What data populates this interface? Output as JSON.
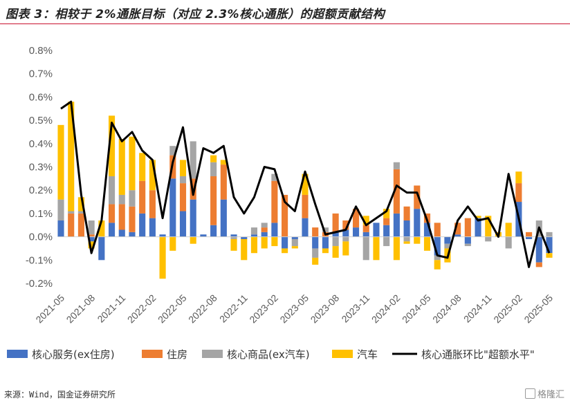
{
  "title": "图表 3：相较于 2%通胀目标（对应 2.3%核心通胀）的超额贡献结构",
  "source": "来源：Wind，国金证券研究所",
  "watermark": "格隆汇",
  "chart_data": {
    "type": "bar",
    "stacked": true,
    "title": "",
    "xlabel": "",
    "ylabel": "",
    "ylim": [
      -0.2,
      0.8
    ],
    "y_ticks": [
      "-0.2%",
      "-0.1%",
      "0.0%",
      "0.1%",
      "0.2%",
      "0.3%",
      "0.4%",
      "0.5%",
      "0.6%",
      "0.7%",
      "0.8%"
    ],
    "x_tick_labels": [
      "2021-05",
      "2021-08",
      "2021-11",
      "2022-02",
      "2022-05",
      "2022-08",
      "2022-11",
      "2023-02",
      "2023-05",
      "2023-08",
      "2023-11",
      "2024-02",
      "2024-05",
      "2024-08",
      "2024-11",
      "2025-02",
      "2025-05"
    ],
    "legend_position": "bottom",
    "grid": false,
    "categories": [
      "2021-05",
      "2021-06",
      "2021-07",
      "2021-08",
      "2021-09",
      "2021-10",
      "2021-11",
      "2021-12",
      "2022-01",
      "2022-02",
      "2022-03",
      "2022-04",
      "2022-05",
      "2022-06",
      "2022-07",
      "2022-08",
      "2022-09",
      "2022-10",
      "2022-11",
      "2022-12",
      "2023-01",
      "2023-02",
      "2023-03",
      "2023-04",
      "2023-05",
      "2023-06",
      "2023-07",
      "2023-08",
      "2023-09",
      "2023-10",
      "2023-11",
      "2023-12",
      "2024-01",
      "2024-02",
      "2024-03",
      "2024-04",
      "2024-05",
      "2024-06",
      "2024-07",
      "2024-08",
      "2024-09",
      "2024-10",
      "2024-11",
      "2024-12",
      "2025-01",
      "2025-02",
      "2025-03",
      "2025-04",
      "2025-05"
    ],
    "series": [
      {
        "name": "核心服务(ex住房)",
        "type": "bar",
        "color": "#4472C4",
        "values": [
          0.07,
          0.0,
          0.0,
          -0.02,
          -0.1,
          0.06,
          0.03,
          0.02,
          0.1,
          0.08,
          0.01,
          0.25,
          0.11,
          0.16,
          0.01,
          0.05,
          0.16,
          0.01,
          -0.01,
          0.01,
          0.02,
          0.06,
          -0.05,
          -0.01,
          0.08,
          -0.05,
          -0.05,
          0.02,
          0.03,
          0.04,
          0.02,
          0.06,
          0.05,
          0.1,
          0.07,
          0.12,
          0.06,
          -0.08,
          -0.03,
          0.01,
          -0.03,
          0.08,
          0.0,
          0.0,
          0.0,
          0.15,
          -0.01,
          -0.11,
          -0.07
        ]
      },
      {
        "name": "住房",
        "type": "bar",
        "color": "#ED7D31",
        "values": [
          0.0,
          0.1,
          0.1,
          0.01,
          0.0,
          0.08,
          0.11,
          0.11,
          0.14,
          0.12,
          0.0,
          0.1,
          0.12,
          0.09,
          0.0,
          0.21,
          0.15,
          0.0,
          0.0,
          0.0,
          0.02,
          0.18,
          0.18,
          0.0,
          0.1,
          0.04,
          0.02,
          0.08,
          0.04,
          0.08,
          0.03,
          0.0,
          0.03,
          0.19,
          0.06,
          0.1,
          0.04,
          0.06,
          0.0,
          0.05,
          0.08,
          0.0,
          0.0,
          0.0,
          0.0,
          0.08,
          0.02,
          -0.02,
          0.0
        ]
      },
      {
        "name": "核心商品(ex汽车)",
        "type": "bar",
        "color": "#A5A5A5",
        "values": [
          0.09,
          0.01,
          0.01,
          0.06,
          0.0,
          0.12,
          0.04,
          0.07,
          0.0,
          0.0,
          0.0,
          0.04,
          0.03,
          0.16,
          0.0,
          0.06,
          0.0,
          -0.01,
          0.0,
          0.03,
          0.02,
          0.03,
          0.0,
          -0.03,
          0.0,
          -0.04,
          0.02,
          -0.04,
          -0.02,
          0.0,
          -0.1,
          0.0,
          -0.04,
          0.03,
          -0.02,
          0.0,
          0.0,
          -0.02,
          -0.02,
          0.0,
          -0.01,
          0.0,
          -0.02,
          0.0,
          -0.05,
          0.0,
          0.0,
          0.07,
          0.02
        ]
      },
      {
        "name": "汽车",
        "type": "bar",
        "color": "#FFC000",
        "values": [
          0.32,
          0.47,
          0.06,
          -0.03,
          0.07,
          0.26,
          0.24,
          0.23,
          0.12,
          0.13,
          -0.18,
          -0.06,
          0.07,
          -0.03,
          0.0,
          0.03,
          0.02,
          -0.05,
          -0.09,
          -0.07,
          -0.05,
          -0.04,
          -0.02,
          -0.01,
          0.09,
          -0.03,
          -0.02,
          -0.05,
          -0.06,
          0.0,
          0.04,
          -0.1,
          0.04,
          -0.1,
          -0.01,
          -0.03,
          -0.06,
          -0.04,
          -0.06,
          0.0,
          0.0,
          0.01,
          0.09,
          0.02,
          0.06,
          0.05,
          0.0,
          0.0,
          -0.02
        ]
      },
      {
        "name": "核心通胀环比\"超额水平\"",
        "type": "line",
        "color": "#000000",
        "values": [
          0.55,
          0.58,
          0.18,
          -0.07,
          0.07,
          0.49,
          0.41,
          0.45,
          0.37,
          0.33,
          0.08,
          0.32,
          0.47,
          0.18,
          0.38,
          0.36,
          0.39,
          0.17,
          0.1,
          0.17,
          0.3,
          0.29,
          0.15,
          0.11,
          0.28,
          0.14,
          0.01,
          0.02,
          0.03,
          0.13,
          0.05,
          0.08,
          0.11,
          0.22,
          0.19,
          0.19,
          0.07,
          -0.08,
          -0.09,
          0.07,
          0.13,
          0.07,
          0.08,
          0.0,
          0.27,
          0.08,
          -0.13,
          0.04,
          -0.07
        ]
      }
    ]
  }
}
